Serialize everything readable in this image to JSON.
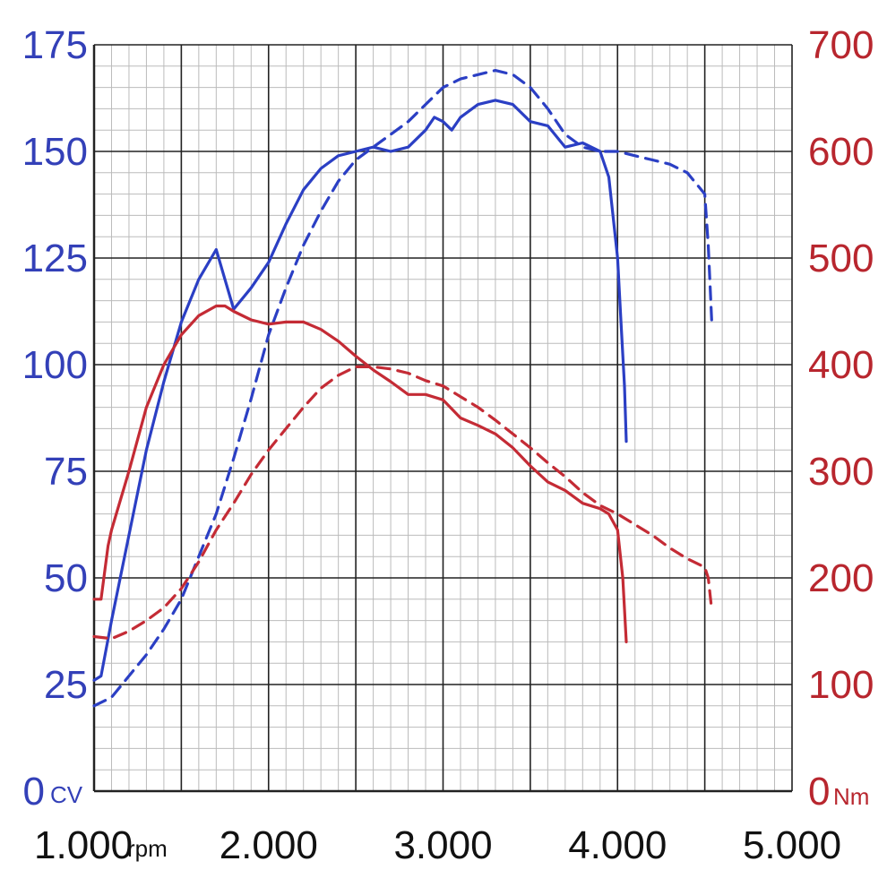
{
  "chart_data": {
    "type": "line",
    "title": "",
    "xlabel": "",
    "x_unit": "rpm",
    "y_left_unit": "CV",
    "y_right_unit": "Nm",
    "xlim": [
      1000,
      5000
    ],
    "ylim_left": [
      0,
      175
    ],
    "ylim_right": [
      0,
      700
    ],
    "x_ticks": [
      1000,
      2000,
      3000,
      4000,
      5000
    ],
    "x_tick_labels": [
      "1.000",
      "2.000",
      "3.000",
      "4.000",
      "5.000"
    ],
    "y_left_ticks": [
      0,
      25,
      50,
      75,
      100,
      125,
      150,
      175
    ],
    "y_left_tick_labels": [
      "0",
      "25",
      "50",
      "75",
      "100",
      "125",
      "150",
      "175"
    ],
    "y_right_ticks": [
      0,
      100,
      200,
      300,
      400,
      500,
      600,
      700
    ],
    "y_right_tick_labels": [
      "0",
      "100",
      "200",
      "300",
      "400",
      "500",
      "600",
      "700"
    ],
    "grid": true,
    "colors": {
      "power": "#2b3fc4",
      "torque": "#c42b35",
      "left_axis_text": "#3340b8",
      "right_axis_text": "#b8262e",
      "grid_major": "#222222",
      "grid_minor": "#bbbbbb"
    },
    "series": [
      {
        "quantity": "power",
        "axis": "left",
        "style": "solid",
        "x": [
          1000,
          1040,
          1100,
          1200,
          1300,
          1400,
          1500,
          1600,
          1700,
          1800,
          1900,
          2000,
          2100,
          2200,
          2300,
          2400,
          2500,
          2600,
          2700,
          2800,
          2900,
          2950,
          3000,
          3050,
          3100,
          3200,
          3300,
          3400,
          3500,
          3600,
          3700,
          3800,
          3900,
          3950,
          4000,
          4020,
          4040,
          4050
        ],
        "y": [
          26,
          27,
          40,
          60,
          80,
          96,
          110,
          120,
          127,
          113,
          118,
          124,
          133,
          141,
          146,
          149,
          150,
          151,
          150,
          151,
          155,
          158,
          157,
          155,
          158,
          161,
          162,
          161,
          157,
          156,
          151,
          152,
          150,
          144,
          125,
          110,
          95,
          82
        ]
      },
      {
        "quantity": "power",
        "axis": "left",
        "style": "dashed",
        "x": [
          1000,
          1100,
          1200,
          1300,
          1400,
          1500,
          1600,
          1700,
          1800,
          1900,
          2000,
          2100,
          2200,
          2300,
          2400,
          2500,
          2600,
          2700,
          2800,
          2900,
          3000,
          3100,
          3200,
          3300,
          3400,
          3500,
          3600,
          3700,
          3800,
          3900,
          4000,
          4100,
          4200,
          4300,
          4400,
          4500,
          4520,
          4540
        ],
        "y": [
          20,
          22,
          27,
          32,
          38,
          45,
          55,
          65,
          78,
          92,
          107,
          118,
          128,
          136,
          143,
          148,
          151,
          154,
          157,
          161,
          165,
          167,
          168,
          169,
          168,
          165,
          160,
          154,
          151,
          150,
          150,
          149,
          148,
          147,
          145,
          140,
          128,
          110
        ]
      },
      {
        "quantity": "torque",
        "axis": "right",
        "style": "solid",
        "x": [
          1000,
          1040,
          1080,
          1100,
          1200,
          1300,
          1400,
          1500,
          1600,
          1700,
          1750,
          1800,
          1900,
          2000,
          2100,
          2200,
          2300,
          2400,
          2500,
          2600,
          2700,
          2800,
          2900,
          3000,
          3100,
          3200,
          3300,
          3400,
          3500,
          3600,
          3700,
          3800,
          3900,
          3950,
          4000,
          4030,
          4050
        ],
        "y": [
          180,
          180,
          230,
          245,
          300,
          360,
          400,
          428,
          446,
          455,
          455,
          450,
          442,
          438,
          440,
          440,
          433,
          422,
          408,
          395,
          384,
          372,
          372,
          367,
          350,
          343,
          335,
          322,
          305,
          290,
          282,
          270,
          265,
          260,
          245,
          200,
          140
        ]
      },
      {
        "quantity": "torque",
        "axis": "right",
        "style": "dashed",
        "x": [
          1000,
          1100,
          1200,
          1300,
          1400,
          1500,
          1600,
          1700,
          1800,
          1900,
          2000,
          2100,
          2200,
          2300,
          2400,
          2500,
          2600,
          2700,
          2800,
          2900,
          3000,
          3100,
          3200,
          3300,
          3400,
          3500,
          3600,
          3700,
          3800,
          3900,
          4000,
          4100,
          4200,
          4300,
          4400,
          4500,
          4520,
          4540
        ],
        "y": [
          145,
          143,
          150,
          160,
          172,
          190,
          215,
          245,
          270,
          297,
          320,
          340,
          360,
          378,
          390,
          398,
          398,
          396,
          392,
          385,
          380,
          370,
          360,
          348,
          335,
          322,
          308,
          295,
          280,
          268,
          260,
          250,
          240,
          228,
          218,
          210,
          200,
          170
        ]
      }
    ]
  }
}
